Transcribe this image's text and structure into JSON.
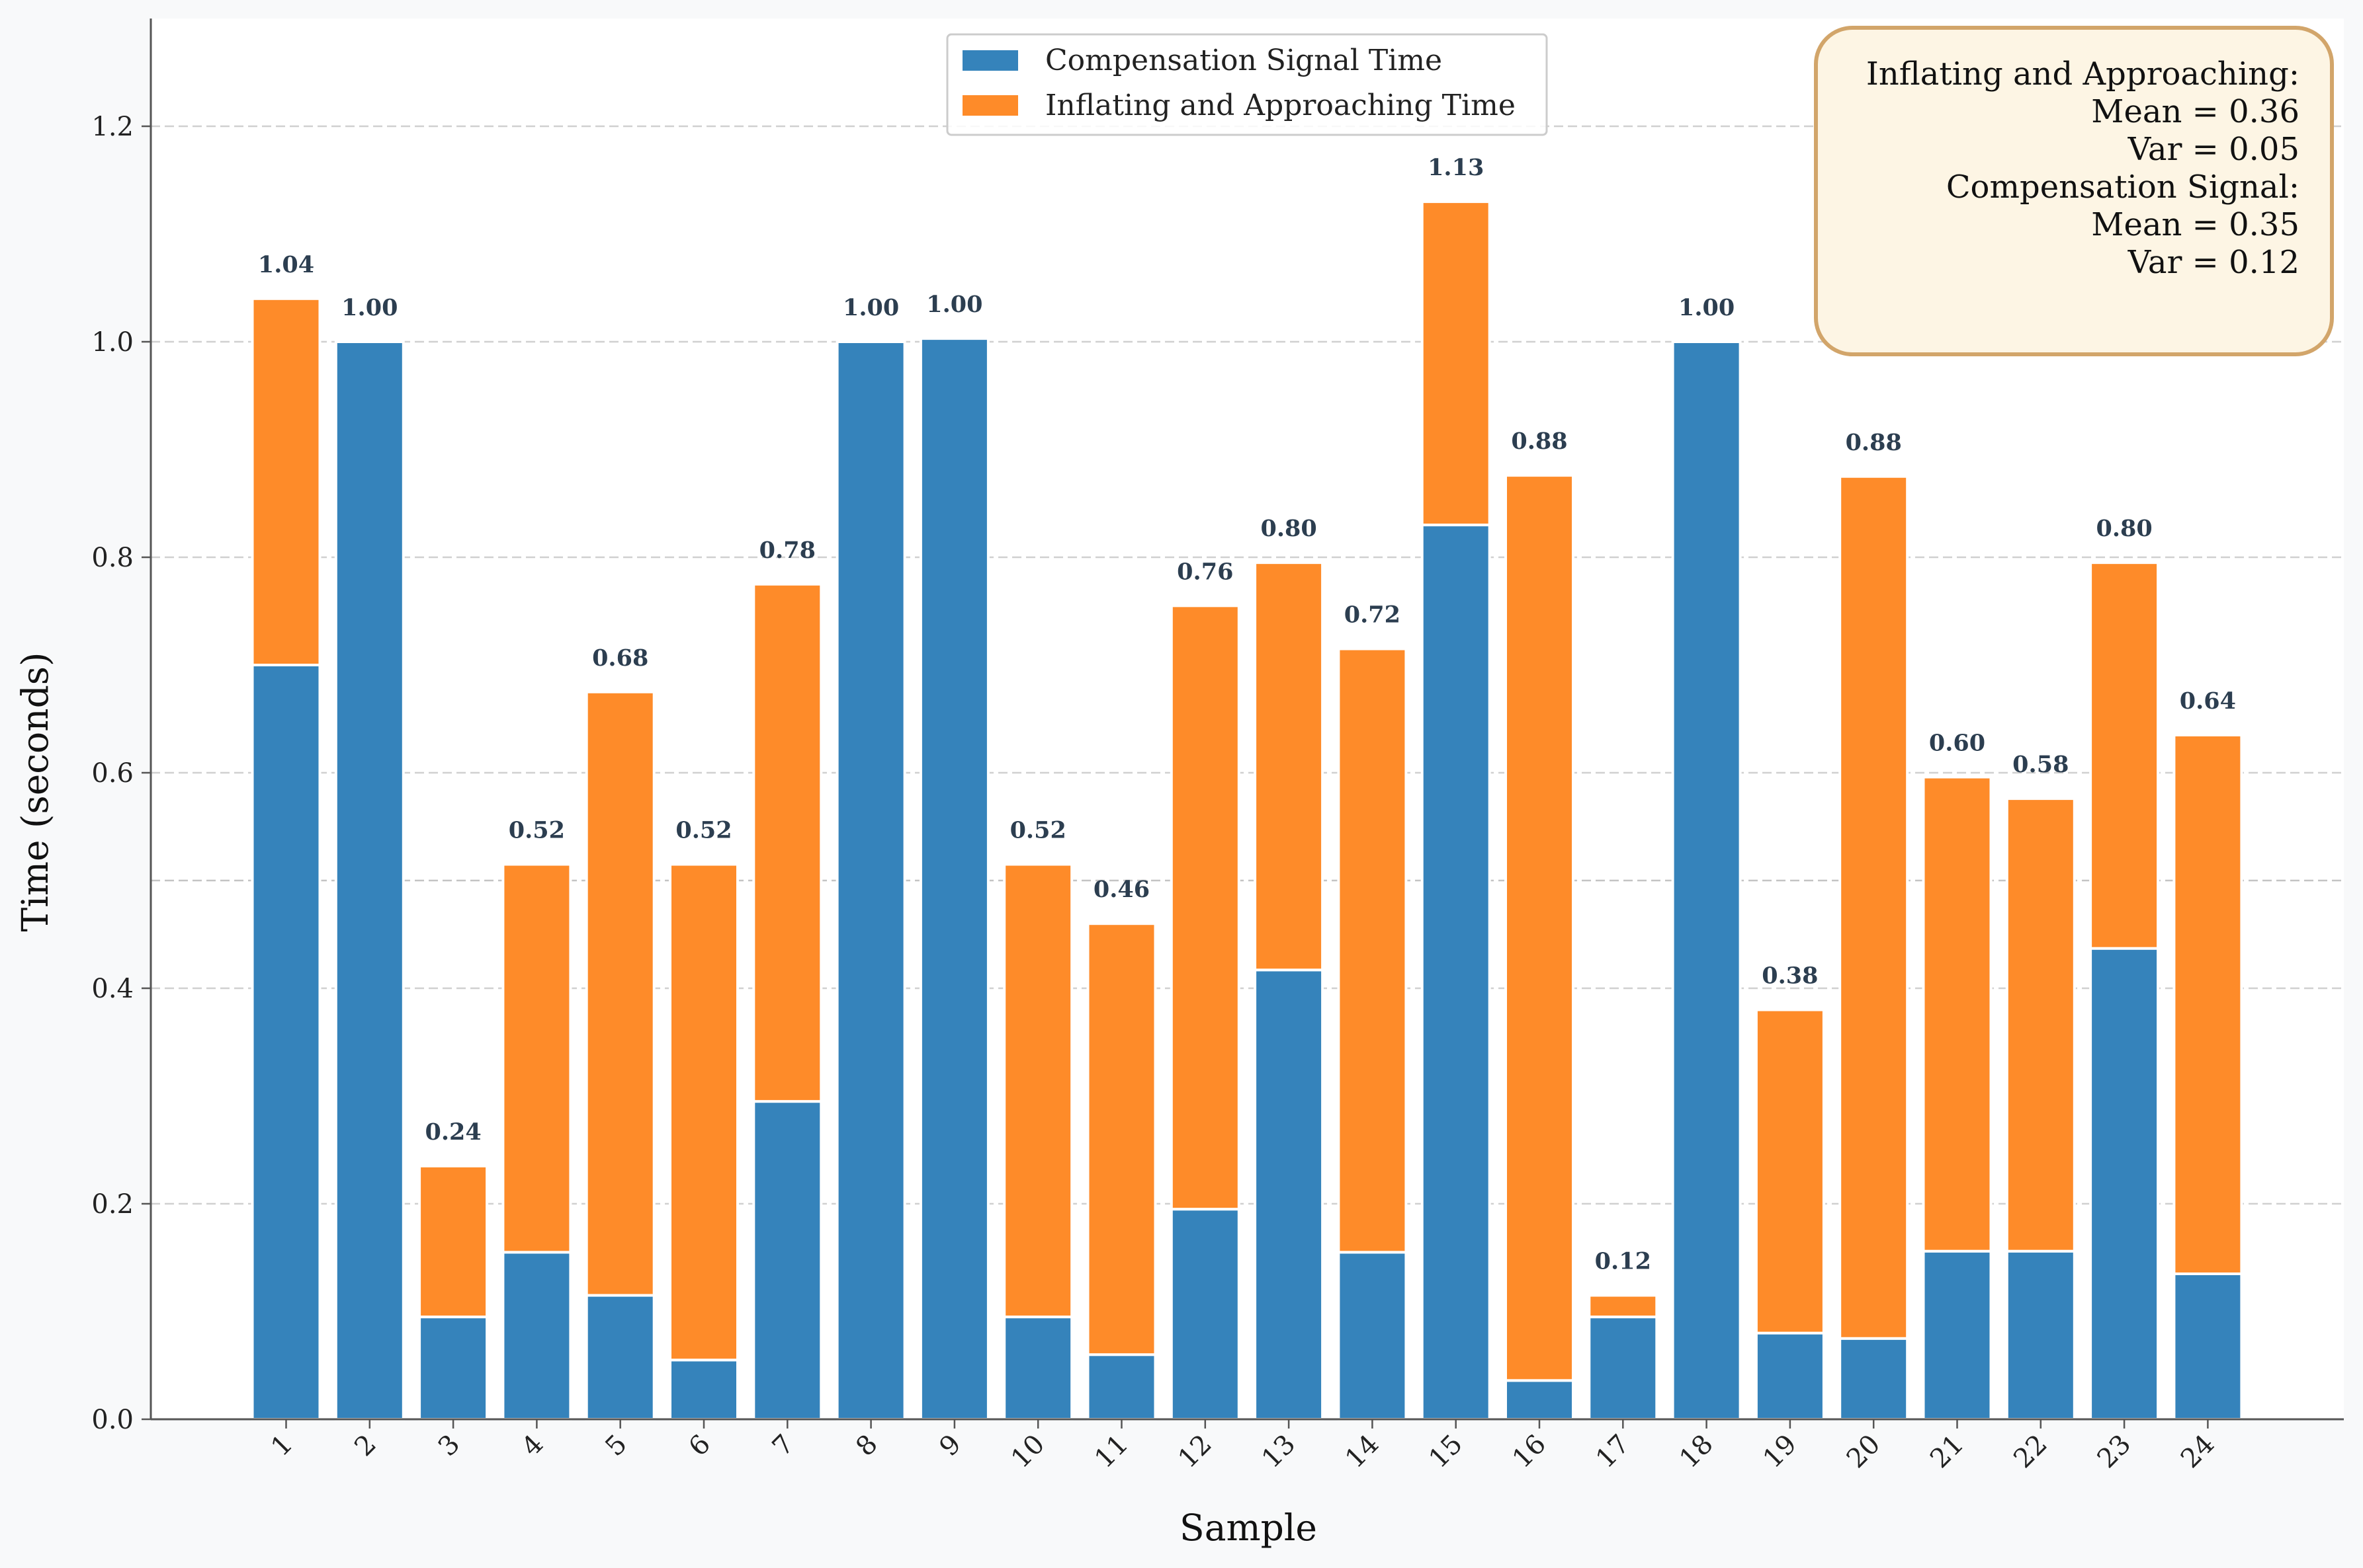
{
  "chart_data": {
    "type": "bar",
    "stacked": true,
    "xlabel": "Sample",
    "ylabel": "Time (seconds)",
    "ylim": [
      0,
      1.3
    ],
    "yticks": [
      0.0,
      0.2,
      0.4,
      0.6,
      0.8,
      1.0,
      1.2
    ],
    "ytick_labels": [
      "0.0",
      "0.2",
      "0.4",
      "0.6",
      "0.8",
      "1.0",
      "1.2"
    ],
    "grid": true,
    "legend_position": "top-center",
    "categories": [
      "1",
      "2",
      "3",
      "4",
      "5",
      "6",
      "7",
      "8",
      "9",
      "10",
      "11",
      "12",
      "13",
      "14",
      "15",
      "16",
      "17",
      "18",
      "19",
      "20",
      "21",
      "22",
      "23",
      "24"
    ],
    "series": [
      {
        "name": "Compensation Signal Time",
        "color": "#3583bb",
        "values": [
          0.7,
          1.0,
          0.095,
          0.155,
          0.115,
          0.055,
          0.295,
          1.0,
          1.003,
          0.095,
          0.06,
          0.195,
          0.417,
          0.155,
          0.83,
          0.036,
          0.095,
          1.0,
          0.08,
          0.075,
          0.156,
          0.156,
          0.437,
          0.135
        ]
      },
      {
        "name": "Inflating and Approaching Time",
        "color": "#fe8b29",
        "values": [
          0.34,
          0.0,
          0.14,
          0.36,
          0.56,
          0.46,
          0.48,
          0.0,
          0.0,
          0.42,
          0.4,
          0.56,
          0.378,
          0.56,
          0.3,
          0.84,
          0.02,
          0.0,
          0.3,
          0.8,
          0.44,
          0.42,
          0.358,
          0.5
        ]
      }
    ],
    "total_labels": [
      "1.04",
      "1.00",
      "0.24",
      "0.52",
      "0.68",
      "0.52",
      "0.78",
      "1.00",
      "1.00",
      "0.52",
      "0.46",
      "0.76",
      "0.80",
      "0.72",
      "1.13",
      "0.88",
      "0.12",
      "1.00",
      "0.38",
      "0.88",
      "0.60",
      "0.58",
      "0.80",
      "0.64"
    ],
    "stats_box": {
      "lines": [
        "Inflating and Approaching:",
        "Mean = 0.36",
        "Var = 0.05",
        "Compensation Signal:",
        "Mean = 0.35",
        "Var = 0.12"
      ]
    }
  }
}
